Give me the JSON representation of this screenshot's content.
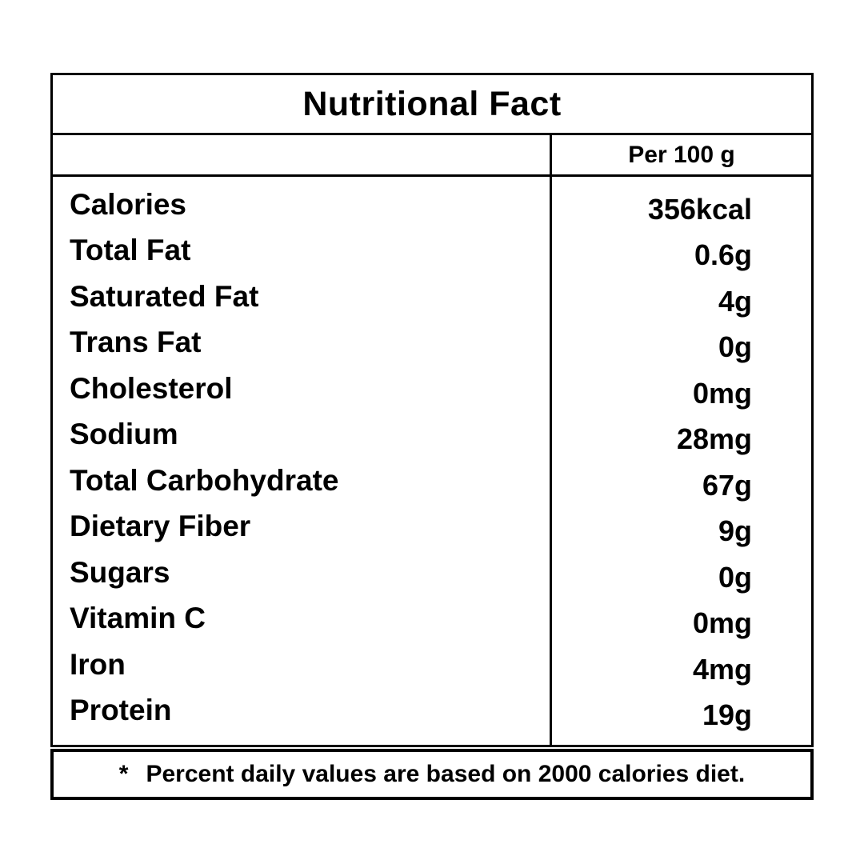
{
  "table": {
    "title": "Nutritional Fact",
    "column_header": "Per 100 g",
    "rows": [
      {
        "label": "Calories",
        "value": "356kcal"
      },
      {
        "label": "Total Fat",
        "value": "0.6g"
      },
      {
        "label": "Saturated Fat",
        "value": "4g"
      },
      {
        "label": "Trans Fat",
        "value": "0g"
      },
      {
        "label": "Cholesterol",
        "value": "0mg"
      },
      {
        "label": "Sodium",
        "value": "28mg"
      },
      {
        "label": "Total Carbohydrate",
        "value": "67g"
      },
      {
        "label": "Dietary Fiber",
        "value": "9g"
      },
      {
        "label": "Sugars",
        "value": "0g"
      },
      {
        "label": "Vitamin C",
        "value": "0mg"
      },
      {
        "label": "Iron",
        "value": "4mg"
      },
      {
        "label": "Protein",
        "value": "19g"
      }
    ],
    "footnote_marker": "*",
    "footnote_text": "Percent daily values are based on 2000 calories diet."
  },
  "colors": {
    "text": "#000000",
    "border": "#000000",
    "background": "#ffffff"
  }
}
